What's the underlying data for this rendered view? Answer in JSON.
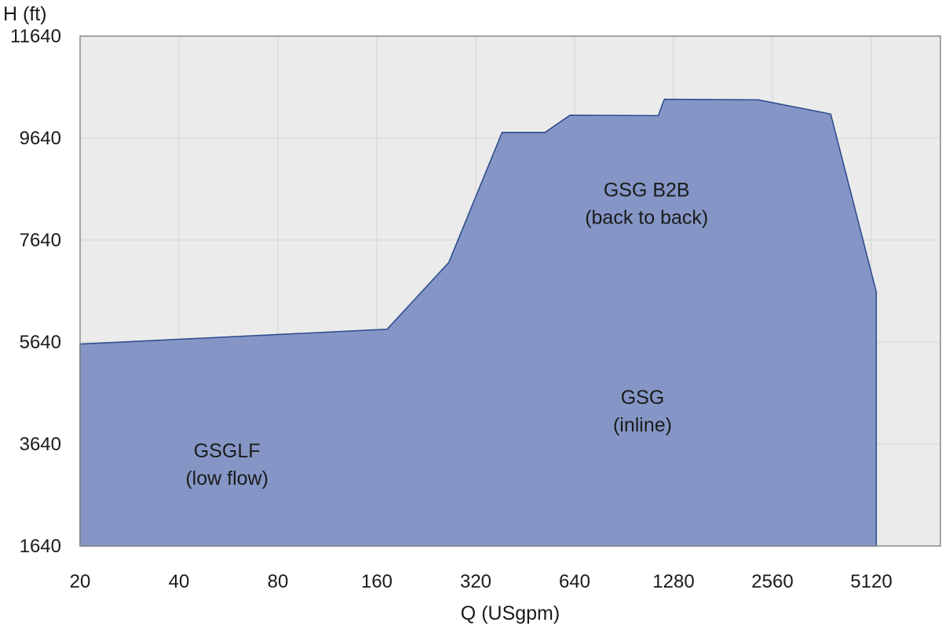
{
  "chart_data": {
    "type": "area",
    "xlabel": "Q (USgpm)",
    "ylabel": "H (ft)",
    "x_scale": "log2",
    "xlim": [
      20,
      7200
    ],
    "ylim": [
      1640,
      11640
    ],
    "x_ticks": [
      20,
      40,
      80,
      160,
      320,
      640,
      1280,
      2560,
      5120
    ],
    "x_tick_labels": [
      "20",
      "40",
      "80",
      "160",
      "320",
      "640",
      "1280",
      "2560",
      "5120"
    ],
    "y_ticks": [
      1640,
      3640,
      5640,
      7640,
      9640,
      11640
    ],
    "y_tick_labels": [
      "1640",
      "3640",
      "5640",
      "7640",
      "9640",
      "11640"
    ],
    "grid": true,
    "series": [
      {
        "points": [
          {
            "x": 20,
            "y": 5600
          },
          {
            "x": 172,
            "y": 5890
          },
          {
            "x": 265,
            "y": 7200
          },
          {
            "x": 385,
            "y": 9750
          },
          {
            "x": 520,
            "y": 9750
          },
          {
            "x": 620,
            "y": 10090
          },
          {
            "x": 1150,
            "y": 10080
          },
          {
            "x": 1200,
            "y": 10400
          },
          {
            "x": 2320,
            "y": 10390
          },
          {
            "x": 3850,
            "y": 10110
          },
          {
            "x": 5300,
            "y": 6620
          },
          {
            "x": 5300,
            "y": 1640
          },
          {
            "x": 20,
            "y": 1640
          }
        ]
      }
    ],
    "annotations": [
      {
        "lines": [
          "GSGLF",
          "(low flow)"
        ],
        "x": 56,
        "y": 3300
      },
      {
        "lines": [
          "GSG",
          "(inline)"
        ],
        "x": 1030,
        "y": 4350
      },
      {
        "lines": [
          "GSG B2B",
          "(back to back)"
        ],
        "x": 1060,
        "y": 8420
      }
    ],
    "colors": {
      "plot_background": "#ebebeb",
      "grid": "#d4d4d4",
      "area_fill": "#8596c6",
      "area_stroke": "#2f4f8f",
      "frame": "#8a8a8a"
    }
  }
}
